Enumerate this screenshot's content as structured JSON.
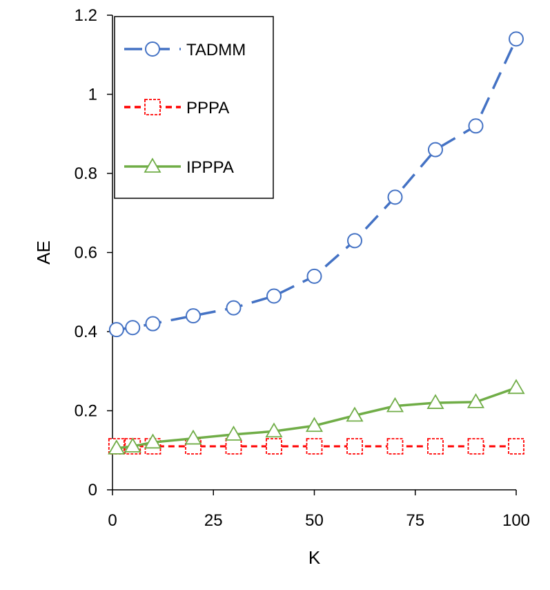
{
  "chart_data": {
    "type": "line",
    "title": "",
    "xlabel": "K",
    "ylabel": "AE",
    "xlim": [
      0,
      100
    ],
    "ylim": [
      0,
      1.2
    ],
    "x_ticks": [
      "0",
      "25",
      "50",
      "75",
      "100"
    ],
    "y_ticks": [
      "0",
      "0.2",
      "0.4",
      "0.6",
      "0.8",
      "1",
      "1.2"
    ],
    "x_tick_values": [
      0,
      25,
      50,
      75,
      100
    ],
    "y_tick_values": [
      0,
      0.2,
      0.4,
      0.6,
      0.8,
      1.0,
      1.2
    ],
    "grid": false,
    "legend_position": "top-left",
    "series": [
      {
        "name": "TADMM",
        "color": "#4472C4",
        "line_style": "dashed",
        "marker": "circle",
        "x": [
          1,
          5,
          10,
          20,
          30,
          40,
          50,
          60,
          70,
          80,
          90,
          100
        ],
        "y": [
          0.405,
          0.41,
          0.42,
          0.44,
          0.46,
          0.49,
          0.54,
          0.63,
          0.74,
          0.86,
          0.92,
          1.14
        ]
      },
      {
        "name": "PPPA",
        "color": "#FF0000",
        "line_style": "dashed",
        "marker": "square",
        "x": [
          1,
          5,
          10,
          20,
          30,
          40,
          50,
          60,
          70,
          80,
          90,
          100
        ],
        "y": [
          0.11,
          0.11,
          0.11,
          0.11,
          0.11,
          0.11,
          0.11,
          0.11,
          0.11,
          0.11,
          0.11,
          0.11
        ]
      },
      {
        "name": "IPPPA",
        "color": "#70AD47",
        "line_style": "solid",
        "marker": "triangle",
        "x": [
          1,
          5,
          10,
          20,
          30,
          40,
          50,
          60,
          70,
          80,
          90,
          100
        ],
        "y": [
          0.105,
          0.11,
          0.12,
          0.13,
          0.14,
          0.148,
          0.162,
          0.188,
          0.212,
          0.22,
          0.222,
          0.258
        ]
      }
    ]
  }
}
